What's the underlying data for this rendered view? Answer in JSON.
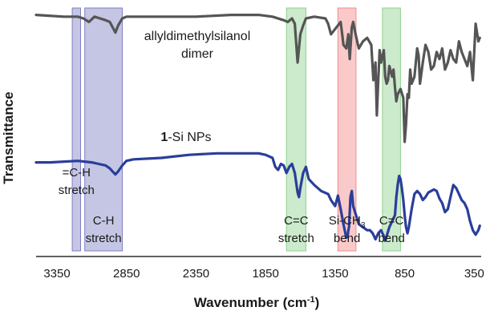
{
  "chart_data": {
    "type": "line",
    "x_axis": {
      "label": "Wavenumber (cm",
      "label_sup": "-1",
      "label_close": ")",
      "range": [
        3500,
        300
      ],
      "reversed": true,
      "ticks": [
        3350,
        2850,
        2350,
        1850,
        1350,
        850,
        350
      ]
    },
    "y_axis": {
      "label": "Transmittance",
      "ticks_shown": false
    },
    "grid": false,
    "series": [
      {
        "name": "allyldimethylsilanol dimer",
        "name_lines": [
          "allyldimethylsilanol",
          "dimer"
        ],
        "color": "#555555",
        "x": [
          3500,
          3300,
          3200,
          3160,
          3120,
          3080,
          3040,
          3000,
          2970,
          2950,
          2930,
          2910,
          2880,
          2850,
          2600,
          2350,
          2100,
          1900,
          1800,
          1720,
          1690,
          1660,
          1640,
          1620,
          1600,
          1580,
          1560,
          1500,
          1420,
          1400,
          1380,
          1340,
          1310,
          1290,
          1270,
          1255,
          1245,
          1230,
          1220,
          1200,
          1180,
          1150,
          1120,
          1090,
          1075,
          1060,
          1050,
          1040,
          1030,
          1020,
          1000,
          990,
          980,
          970,
          960,
          940,
          930,
          920,
          910,
          900,
          880,
          860,
          850,
          840,
          830,
          820,
          810,
          800,
          780,
          760,
          750,
          740,
          720,
          700,
          680,
          660,
          640,
          620,
          600,
          580,
          560,
          540,
          520,
          500,
          480,
          460,
          440,
          420,
          400,
          380,
          360,
          340,
          320,
          310
        ],
        "y": [
          0.97,
          0.96,
          0.96,
          0.95,
          0.93,
          0.96,
          0.95,
          0.94,
          0.93,
          0.9,
          0.87,
          0.91,
          0.95,
          0.96,
          0.96,
          0.96,
          0.97,
          0.97,
          0.96,
          0.94,
          0.93,
          0.95,
          0.92,
          0.7,
          0.86,
          0.91,
          0.95,
          0.96,
          0.95,
          0.92,
          0.86,
          0.9,
          0.93,
          0.8,
          0.78,
          0.86,
          0.72,
          0.9,
          0.93,
          0.85,
          0.78,
          0.82,
          0.84,
          0.8,
          0.6,
          0.7,
          0.4,
          0.6,
          0.77,
          0.7,
          0.77,
          0.62,
          0.58,
          0.6,
          0.68,
          0.62,
          0.66,
          0.56,
          0.48,
          0.52,
          0.55,
          0.5,
          0.25,
          0.35,
          0.52,
          0.5,
          0.66,
          0.58,
          0.62,
          0.78,
          0.74,
          0.58,
          0.7,
          0.8,
          0.76,
          0.66,
          0.68,
          0.76,
          0.72,
          0.78,
          0.66,
          0.7,
          0.77,
          0.72,
          0.7,
          0.82,
          0.76,
          0.72,
          0.68,
          0.76,
          0.6,
          0.92,
          0.82,
          0.84
        ]
      },
      {
        "name": "1-Si NPs",
        "name_bold": "1",
        "name_rest": "-Si NPs",
        "color": "#2a3e9a",
        "x": [
          3500,
          3400,
          3200,
          3100,
          3050,
          3000,
          2970,
          2950,
          2930,
          2910,
          2880,
          2850,
          2800,
          2600,
          2400,
          2200,
          2000,
          1900,
          1850,
          1800,
          1780,
          1760,
          1740,
          1720,
          1700,
          1680,
          1660,
          1640,
          1620,
          1610,
          1600,
          1580,
          1560,
          1540,
          1500,
          1450,
          1400,
          1380,
          1350,
          1330,
          1310,
          1290,
          1270,
          1260,
          1255,
          1250,
          1240,
          1230,
          1220,
          1200,
          1180,
          1150,
          1120,
          1100,
          1080,
          1060,
          1040,
          1020,
          1000,
          990,
          980,
          960,
          940,
          920,
          910,
          900,
          890,
          880,
          870,
          860,
          850,
          840,
          830,
          820,
          800,
          780,
          760,
          740,
          720,
          700,
          680,
          660,
          640,
          620,
          600,
          580,
          560,
          540,
          520,
          500,
          480,
          460,
          440,
          420,
          400,
          380,
          360,
          340,
          320,
          310
        ],
        "y": [
          0.55,
          0.55,
          0.56,
          0.55,
          0.54,
          0.53,
          0.51,
          0.49,
          0.47,
          0.49,
          0.53,
          0.56,
          0.57,
          0.58,
          0.6,
          0.61,
          0.61,
          0.61,
          0.6,
          0.58,
          0.52,
          0.5,
          0.54,
          0.53,
          0.48,
          0.52,
          0.54,
          0.48,
          0.35,
          0.32,
          0.38,
          0.48,
          0.52,
          0.44,
          0.4,
          0.36,
          0.34,
          0.3,
          0.26,
          0.33,
          0.24,
          0.14,
          0.05,
          0.06,
          0.1,
          0.12,
          0.32,
          0.36,
          0.26,
          0.2,
          0.14,
          0.12,
          0.1,
          0.1,
          0.08,
          0.04,
          0.08,
          0.1,
          0.06,
          0.03,
          0.06,
          0.12,
          0.16,
          0.2,
          0.32,
          0.4,
          0.46,
          0.44,
          0.38,
          0.3,
          0.2,
          0.12,
          0.08,
          0.12,
          0.24,
          0.34,
          0.36,
          0.34,
          0.3,
          0.32,
          0.35,
          0.36,
          0.37,
          0.36,
          0.31,
          0.28,
          0.22,
          0.24,
          0.32,
          0.4,
          0.38,
          0.34,
          0.3,
          0.28,
          0.24,
          0.16,
          0.1,
          0.07,
          0.1,
          0.13
        ]
      }
    ],
    "annotations": [
      {
        "lines": [
          "=C-H",
          "stretch"
        ],
        "from": 3240,
        "to": 3180,
        "color": "#7f7fc4"
      },
      {
        "lines": [
          "C-H",
          "stretch"
        ],
        "from": 3150,
        "to": 2880,
        "color": "#7f7fc4"
      },
      {
        "lines": [
          "C=C",
          "stretch"
        ],
        "from": 1700,
        "to": 1560,
        "color": "#8fd18f"
      },
      {
        "lines": [
          "Si-CH",
          "bend"
        ],
        "sub": "3",
        "from": 1330,
        "to": 1200,
        "color": "#f38a8a"
      },
      {
        "lines": [
          "C=C",
          "bend"
        ],
        "from": 1010,
        "to": 880,
        "color": "#8fd18f"
      }
    ]
  }
}
